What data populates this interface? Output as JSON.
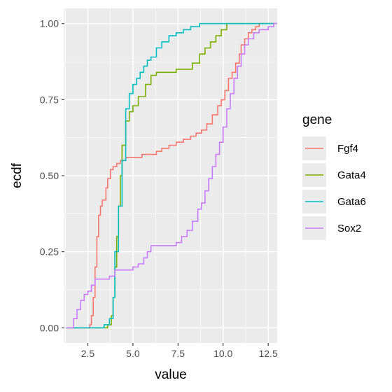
{
  "chart_data": {
    "type": "line",
    "step": true,
    "xlabel": "value",
    "ylabel": "ecdf",
    "xlim": [
      1.2,
      13.0
    ],
    "ylim": [
      -0.05,
      1.05
    ],
    "x_ticks": [
      2.5,
      5.0,
      7.5,
      10.0,
      12.5
    ],
    "x_tick_labels": [
      "2.5",
      "5.0",
      "7.5",
      "10.0",
      "12.5"
    ],
    "y_ticks": [
      0.0,
      0.25,
      0.5,
      0.75,
      1.0
    ],
    "y_tick_labels": [
      "0.00",
      "0.25",
      "0.50",
      "0.75",
      "1.00"
    ],
    "grid": true,
    "legend": {
      "title": "gene",
      "position": "right"
    },
    "series": [
      {
        "name": "Fgf4",
        "color": "#F8766D",
        "points": [
          [
            1.3,
            0.0
          ],
          [
            2.5,
            0.0
          ],
          [
            2.6,
            0.01
          ],
          [
            2.7,
            0.04
          ],
          [
            2.8,
            0.1
          ],
          [
            2.9,
            0.2
          ],
          [
            3.0,
            0.3
          ],
          [
            3.1,
            0.37
          ],
          [
            3.2,
            0.4
          ],
          [
            3.3,
            0.42
          ],
          [
            3.5,
            0.46
          ],
          [
            3.6,
            0.49
          ],
          [
            3.75,
            0.52
          ],
          [
            3.9,
            0.53
          ],
          [
            4.1,
            0.54
          ],
          [
            4.3,
            0.55
          ],
          [
            4.6,
            0.56
          ],
          [
            5.0,
            0.56
          ],
          [
            5.5,
            0.57
          ],
          [
            6.0,
            0.57
          ],
          [
            6.3,
            0.58
          ],
          [
            6.6,
            0.59
          ],
          [
            7.0,
            0.6
          ],
          [
            7.4,
            0.61
          ],
          [
            7.8,
            0.62
          ],
          [
            8.2,
            0.63
          ],
          [
            8.5,
            0.64
          ],
          [
            8.8,
            0.65
          ],
          [
            9.1,
            0.67
          ],
          [
            9.4,
            0.7
          ],
          [
            9.7,
            0.73
          ],
          [
            9.9,
            0.75
          ],
          [
            10.1,
            0.78
          ],
          [
            10.3,
            0.82
          ],
          [
            10.5,
            0.84
          ],
          [
            10.7,
            0.87
          ],
          [
            10.9,
            0.9
          ],
          [
            11.0,
            0.93
          ],
          [
            11.2,
            0.95
          ],
          [
            11.4,
            0.97
          ],
          [
            11.6,
            0.98
          ],
          [
            11.8,
            0.99
          ],
          [
            12.0,
            1.0
          ],
          [
            13.0,
            1.0
          ]
        ]
      },
      {
        "name": "Gata4",
        "color": "#7CAE00",
        "points": [
          [
            1.3,
            0.0
          ],
          [
            3.5,
            0.0
          ],
          [
            3.6,
            0.01
          ],
          [
            3.8,
            0.04
          ],
          [
            3.9,
            0.1
          ],
          [
            4.0,
            0.2
          ],
          [
            4.1,
            0.3
          ],
          [
            4.2,
            0.4
          ],
          [
            4.3,
            0.5
          ],
          [
            4.4,
            0.6
          ],
          [
            4.6,
            0.68
          ],
          [
            4.8,
            0.71
          ],
          [
            5.0,
            0.73
          ],
          [
            5.3,
            0.76
          ],
          [
            5.7,
            0.8
          ],
          [
            6.0,
            0.83
          ],
          [
            6.3,
            0.84
          ],
          [
            7.0,
            0.84
          ],
          [
            7.4,
            0.85
          ],
          [
            8.0,
            0.85
          ],
          [
            8.3,
            0.87
          ],
          [
            8.7,
            0.9
          ],
          [
            9.0,
            0.92
          ],
          [
            9.3,
            0.94
          ],
          [
            9.6,
            0.96
          ],
          [
            9.9,
            0.98
          ],
          [
            10.2,
            1.0
          ],
          [
            13.0,
            1.0
          ]
        ]
      },
      {
        "name": "Gata6",
        "color": "#00BFC4",
        "points": [
          [
            1.3,
            0.0
          ],
          [
            3.2,
            0.0
          ],
          [
            3.4,
            0.01
          ],
          [
            3.7,
            0.03
          ],
          [
            3.9,
            0.1
          ],
          [
            4.0,
            0.25
          ],
          [
            4.2,
            0.4
          ],
          [
            4.4,
            0.55
          ],
          [
            4.6,
            0.72
          ],
          [
            4.8,
            0.77
          ],
          [
            5.0,
            0.8
          ],
          [
            5.2,
            0.82
          ],
          [
            5.4,
            0.84
          ],
          [
            5.6,
            0.86
          ],
          [
            5.8,
            0.88
          ],
          [
            6.0,
            0.89
          ],
          [
            6.3,
            0.92
          ],
          [
            6.6,
            0.94
          ],
          [
            7.0,
            0.96
          ],
          [
            7.4,
            0.97
          ],
          [
            7.8,
            0.98
          ],
          [
            8.2,
            0.99
          ],
          [
            8.7,
            1.0
          ],
          [
            13.0,
            1.0
          ]
        ]
      },
      {
        "name": "Sox2",
        "color": "#C77CFF",
        "points": [
          [
            1.3,
            0.0
          ],
          [
            1.5,
            0.0
          ],
          [
            1.7,
            0.03
          ],
          [
            1.9,
            0.06
          ],
          [
            2.1,
            0.09
          ],
          [
            2.3,
            0.11
          ],
          [
            2.5,
            0.12
          ],
          [
            2.7,
            0.14
          ],
          [
            2.9,
            0.16
          ],
          [
            3.5,
            0.16
          ],
          [
            3.7,
            0.17
          ],
          [
            4.0,
            0.19
          ],
          [
            4.5,
            0.19
          ],
          [
            5.0,
            0.2
          ],
          [
            5.3,
            0.21
          ],
          [
            5.6,
            0.23
          ],
          [
            5.8,
            0.25
          ],
          [
            6.0,
            0.27
          ],
          [
            7.0,
            0.27
          ],
          [
            7.4,
            0.28
          ],
          [
            7.7,
            0.3
          ],
          [
            8.0,
            0.32
          ],
          [
            8.3,
            0.35
          ],
          [
            8.6,
            0.39
          ],
          [
            8.8,
            0.41
          ],
          [
            9.0,
            0.45
          ],
          [
            9.2,
            0.49
          ],
          [
            9.4,
            0.53
          ],
          [
            9.6,
            0.57
          ],
          [
            9.8,
            0.61
          ],
          [
            10.0,
            0.66
          ],
          [
            10.2,
            0.72
          ],
          [
            10.4,
            0.77
          ],
          [
            10.6,
            0.82
          ],
          [
            10.8,
            0.86
          ],
          [
            11.0,
            0.9
          ],
          [
            11.2,
            0.93
          ],
          [
            11.4,
            0.95
          ],
          [
            11.7,
            0.97
          ],
          [
            12.0,
            0.98
          ],
          [
            12.5,
            0.99
          ],
          [
            12.8,
            1.0
          ],
          [
            13.0,
            1.0
          ]
        ]
      }
    ]
  }
}
